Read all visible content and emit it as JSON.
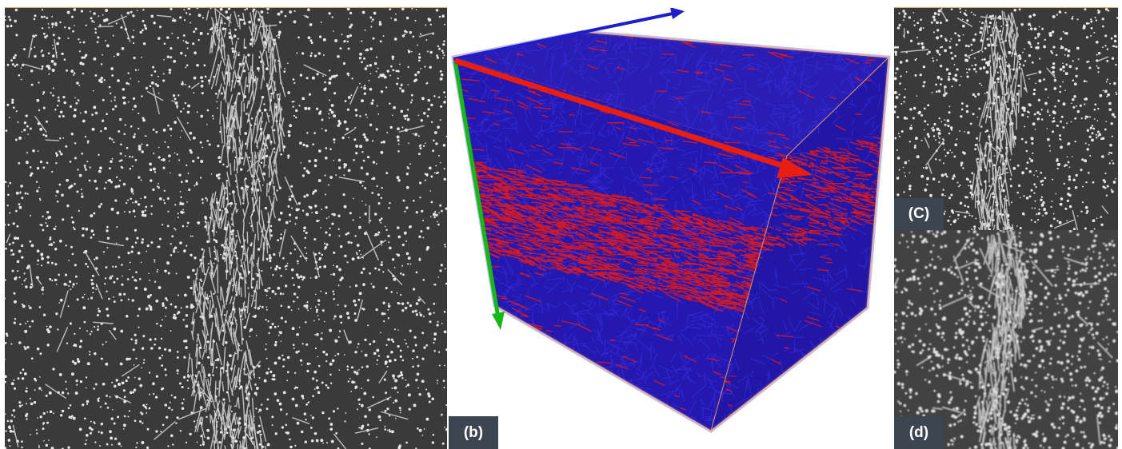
{
  "panels": {
    "a": {
      "label": ""
    },
    "b": {
      "label": "(b)"
    },
    "c": {
      "label": "(C)"
    },
    "d": {
      "label": "(d)"
    }
  },
  "colors": {
    "badge": "#3c4650",
    "micro_background": "#3a3a3a",
    "fiber": "#e8e8e8",
    "axis_x": "#e81e12",
    "axis_y": "#16b816",
    "axis_z": "#1f1fc8",
    "cube_blue": "#2418b8",
    "cube_red": "#d81818",
    "cube_edge": "#f3a45e"
  },
  "icons": [
    "x-axis-arrow-icon",
    "y-axis-arrow-icon",
    "z-axis-arrow-icon"
  ]
}
